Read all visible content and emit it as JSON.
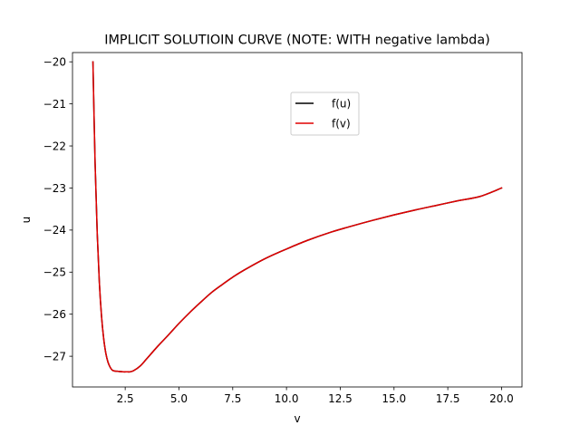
{
  "chart_data": {
    "type": "line",
    "title": "IMPLICIT SOLUTIOIN CURVE (NOTE: WITH negative lambda)",
    "xlabel": "v",
    "ylabel": "u",
    "xlim": [
      0.05,
      20.95
    ],
    "ylim": [
      -27.73,
      -19.78
    ],
    "xticks": [
      2.5,
      5.0,
      7.5,
      10.0,
      12.5,
      15.0,
      17.5,
      20.0
    ],
    "xtick_labels": [
      "2.5",
      "5.0",
      "7.5",
      "10.0",
      "12.5",
      "15.0",
      "17.5",
      "20.0"
    ],
    "yticks": [
      -20,
      -21,
      -22,
      -23,
      -24,
      -25,
      -26,
      -27
    ],
    "ytick_labels": [
      "−20",
      "−21",
      "−22",
      "−23",
      "−24",
      "−25",
      "−26",
      "−27"
    ],
    "grid": false,
    "legend": {
      "placement": "upper-center"
    },
    "x": [
      1.0,
      1.1,
      1.2,
      1.3,
      1.4,
      1.5,
      1.6,
      1.7,
      1.8,
      1.9,
      2.0,
      2.2,
      2.4,
      2.6,
      2.718,
      2.9,
      3.2,
      3.5,
      4.0,
      4.5,
      5.0,
      5.5,
      6.0,
      6.5,
      7.0,
      7.5,
      8.0,
      9.0,
      10.0,
      11.0,
      12.0,
      13.0,
      14.0,
      15.0,
      16.0,
      17.0,
      18.0,
      19.0,
      20.0
    ],
    "series": [
      {
        "name": "f(u)",
        "color": "#000000",
        "values": [
          -20.0,
          -22.4,
          -24.08,
          -25.26,
          -26.05,
          -26.58,
          -26.93,
          -27.14,
          -27.26,
          -27.33,
          -27.35,
          -27.36,
          -27.37,
          -27.37,
          -27.37,
          -27.34,
          -27.23,
          -27.06,
          -26.77,
          -26.5,
          -26.22,
          -25.96,
          -25.72,
          -25.49,
          -25.3,
          -25.12,
          -24.96,
          -24.68,
          -24.45,
          -24.24,
          -24.06,
          -23.91,
          -23.77,
          -23.64,
          -23.52,
          -23.41,
          -23.3,
          -23.2,
          -23.0
        ]
      },
      {
        "name": "f(v)",
        "color": "#e00000",
        "values": [
          -20.0,
          -22.4,
          -24.08,
          -25.26,
          -26.05,
          -26.58,
          -26.93,
          -27.14,
          -27.26,
          -27.33,
          -27.35,
          -27.36,
          -27.37,
          -27.37,
          -27.37,
          -27.34,
          -27.23,
          -27.06,
          -26.77,
          -26.5,
          -26.22,
          -25.96,
          -25.72,
          -25.49,
          -25.3,
          -25.12,
          -24.96,
          -24.68,
          -24.45,
          -24.24,
          -24.06,
          -23.91,
          -23.77,
          -23.64,
          -23.52,
          -23.41,
          -23.3,
          -23.2,
          -23.0
        ]
      }
    ]
  }
}
